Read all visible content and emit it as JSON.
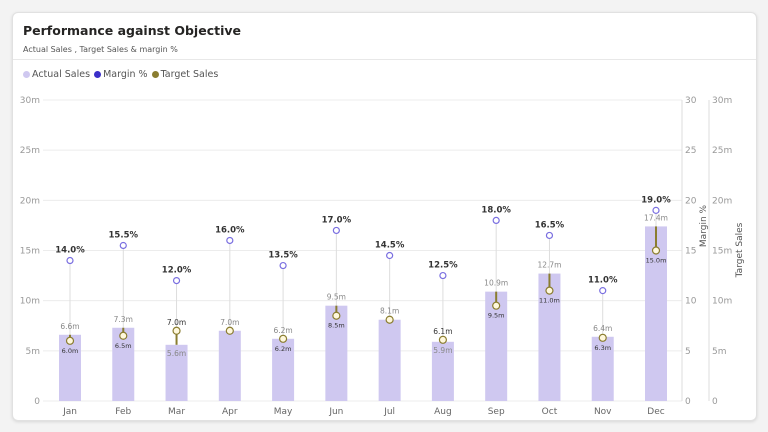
{
  "title": "Performance against Objective",
  "subtitle": "Actual Sales , Target Sales  & margin %",
  "colors": {
    "actual": "#cfc8f0",
    "margin": "#3b2fc9",
    "target": "#8a7d30",
    "margin_marker": "#7a6fe0"
  },
  "chart_data": {
    "type": "bar",
    "categories": [
      "Jan",
      "Feb",
      "Mar",
      "Apr",
      "May",
      "Jun",
      "Jul",
      "Aug",
      "Sep",
      "Oct",
      "Nov",
      "Dec"
    ],
    "series": [
      {
        "name": "Actual Sales",
        "type": "bar",
        "values": [
          6.6,
          7.3,
          5.6,
          7.0,
          6.2,
          9.5,
          8.1,
          5.9,
          10.9,
          12.7,
          6.4,
          17.4
        ],
        "labels": [
          "6.6m",
          "7.3m",
          "5.6m",
          "7.0m",
          "6.2m",
          "9.5m",
          "8.1m",
          "5.9m",
          "10.9m",
          "12.7m",
          "6.4m",
          "17.4m"
        ]
      },
      {
        "name": "Margin %",
        "type": "scatter",
        "values": [
          14.0,
          15.5,
          12.0,
          16.0,
          13.5,
          17.0,
          14.5,
          12.5,
          18.0,
          16.5,
          11.0,
          19.0
        ],
        "labels": [
          "14.0%",
          "15.5%",
          "12.0%",
          "16.0%",
          "13.5%",
          "17.0%",
          "14.5%",
          "12.5%",
          "18.0%",
          "16.5%",
          "11.0%",
          "19.0%"
        ]
      },
      {
        "name": "Target Sales",
        "type": "scatter",
        "values": [
          6.0,
          6.5,
          7.0,
          7.0,
          6.2,
          8.5,
          8.1,
          6.1,
          9.5,
          11.0,
          6.3,
          15.0
        ],
        "labels": [
          "6.0m",
          "6.5m",
          "7.0m",
          "",
          "6.2m",
          "8.5m",
          "",
          "6.1m",
          "9.5m",
          "11.0m",
          "6.3m",
          "15.0m"
        ]
      }
    ],
    "legend": [
      "Actual Sales",
      "Margin %",
      "Target Sales"
    ],
    "legend_position": "top-left",
    "y_left": {
      "ticks": [
        "0",
        "5m",
        "10m",
        "15m",
        "20m",
        "25m",
        "30m"
      ],
      "range": [
        0,
        30
      ]
    },
    "y_margin": {
      "label": "Margin %",
      "ticks": [
        "0",
        "5",
        "10",
        "15",
        "20",
        "25",
        "30"
      ],
      "range": [
        0,
        30
      ]
    },
    "y_target": {
      "label": "Target Sales",
      "ticks": [
        "0",
        "5m",
        "10m",
        "15m",
        "20m",
        "25m",
        "30m"
      ],
      "range": [
        0,
        30
      ]
    },
    "grid": true
  }
}
